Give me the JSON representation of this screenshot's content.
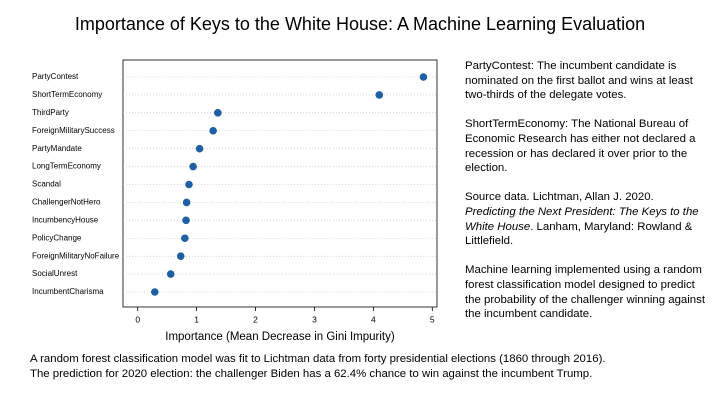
{
  "chart_data": {
    "type": "dot",
    "title": "Importance of Keys to the White House: A Machine Learning Evaluation",
    "x_label": "Importance (Mean Decrease in Gini Impurity)",
    "categories": [
      "PartyContest",
      "ShortTermEconomy",
      "ThirdParty",
      "ForeignMilitarySuccess",
      "PartyMandate",
      "LongTermEconomy",
      "Scandal",
      "ChallengerNotHero",
      "IncumbencyHouse",
      "PolicyChange",
      "ForeignMilitaryNoFailure",
      "SocialUnrest",
      "IncumbentCharisma"
    ],
    "values": [
      4.85,
      4.1,
      1.36,
      1.28,
      1.05,
      0.94,
      0.87,
      0.83,
      0.82,
      0.8,
      0.73,
      0.56,
      0.29
    ],
    "color": "#1f5fa3",
    "xlim": [
      -0.25,
      5.08
    ],
    "xticks": [
      0,
      1,
      2,
      3,
      4,
      5
    ],
    "grid": true
  },
  "notes": [
    "PartyContest: The incumbent candidate is nominated on the first ballot and wins at least two-thirds of the delegate votes.",
    "ShortTermEconomy: The National Bureau of Economic Research has either not declared a recession or has declared it over prior to the election.",
    "Machine learning implemented using a random forest classification model designed to predict the probability of the challenger winning against the incumbent candidate."
  ],
  "source": [
    "Source data. Lichtman, Allan J. 2020. ",
    "Predicting the Next President: The Keys to the White House",
    ". Lanham, Maryland: Rowland & Littlefield."
  ],
  "caption": [
    "A random forest classification model was fit to Lichtman data from forty presidential elections (1860 through 2016).",
    "The prediction for 2020 election: the challenger Biden has a 62.4% chance to win against the incumbent Trump."
  ]
}
